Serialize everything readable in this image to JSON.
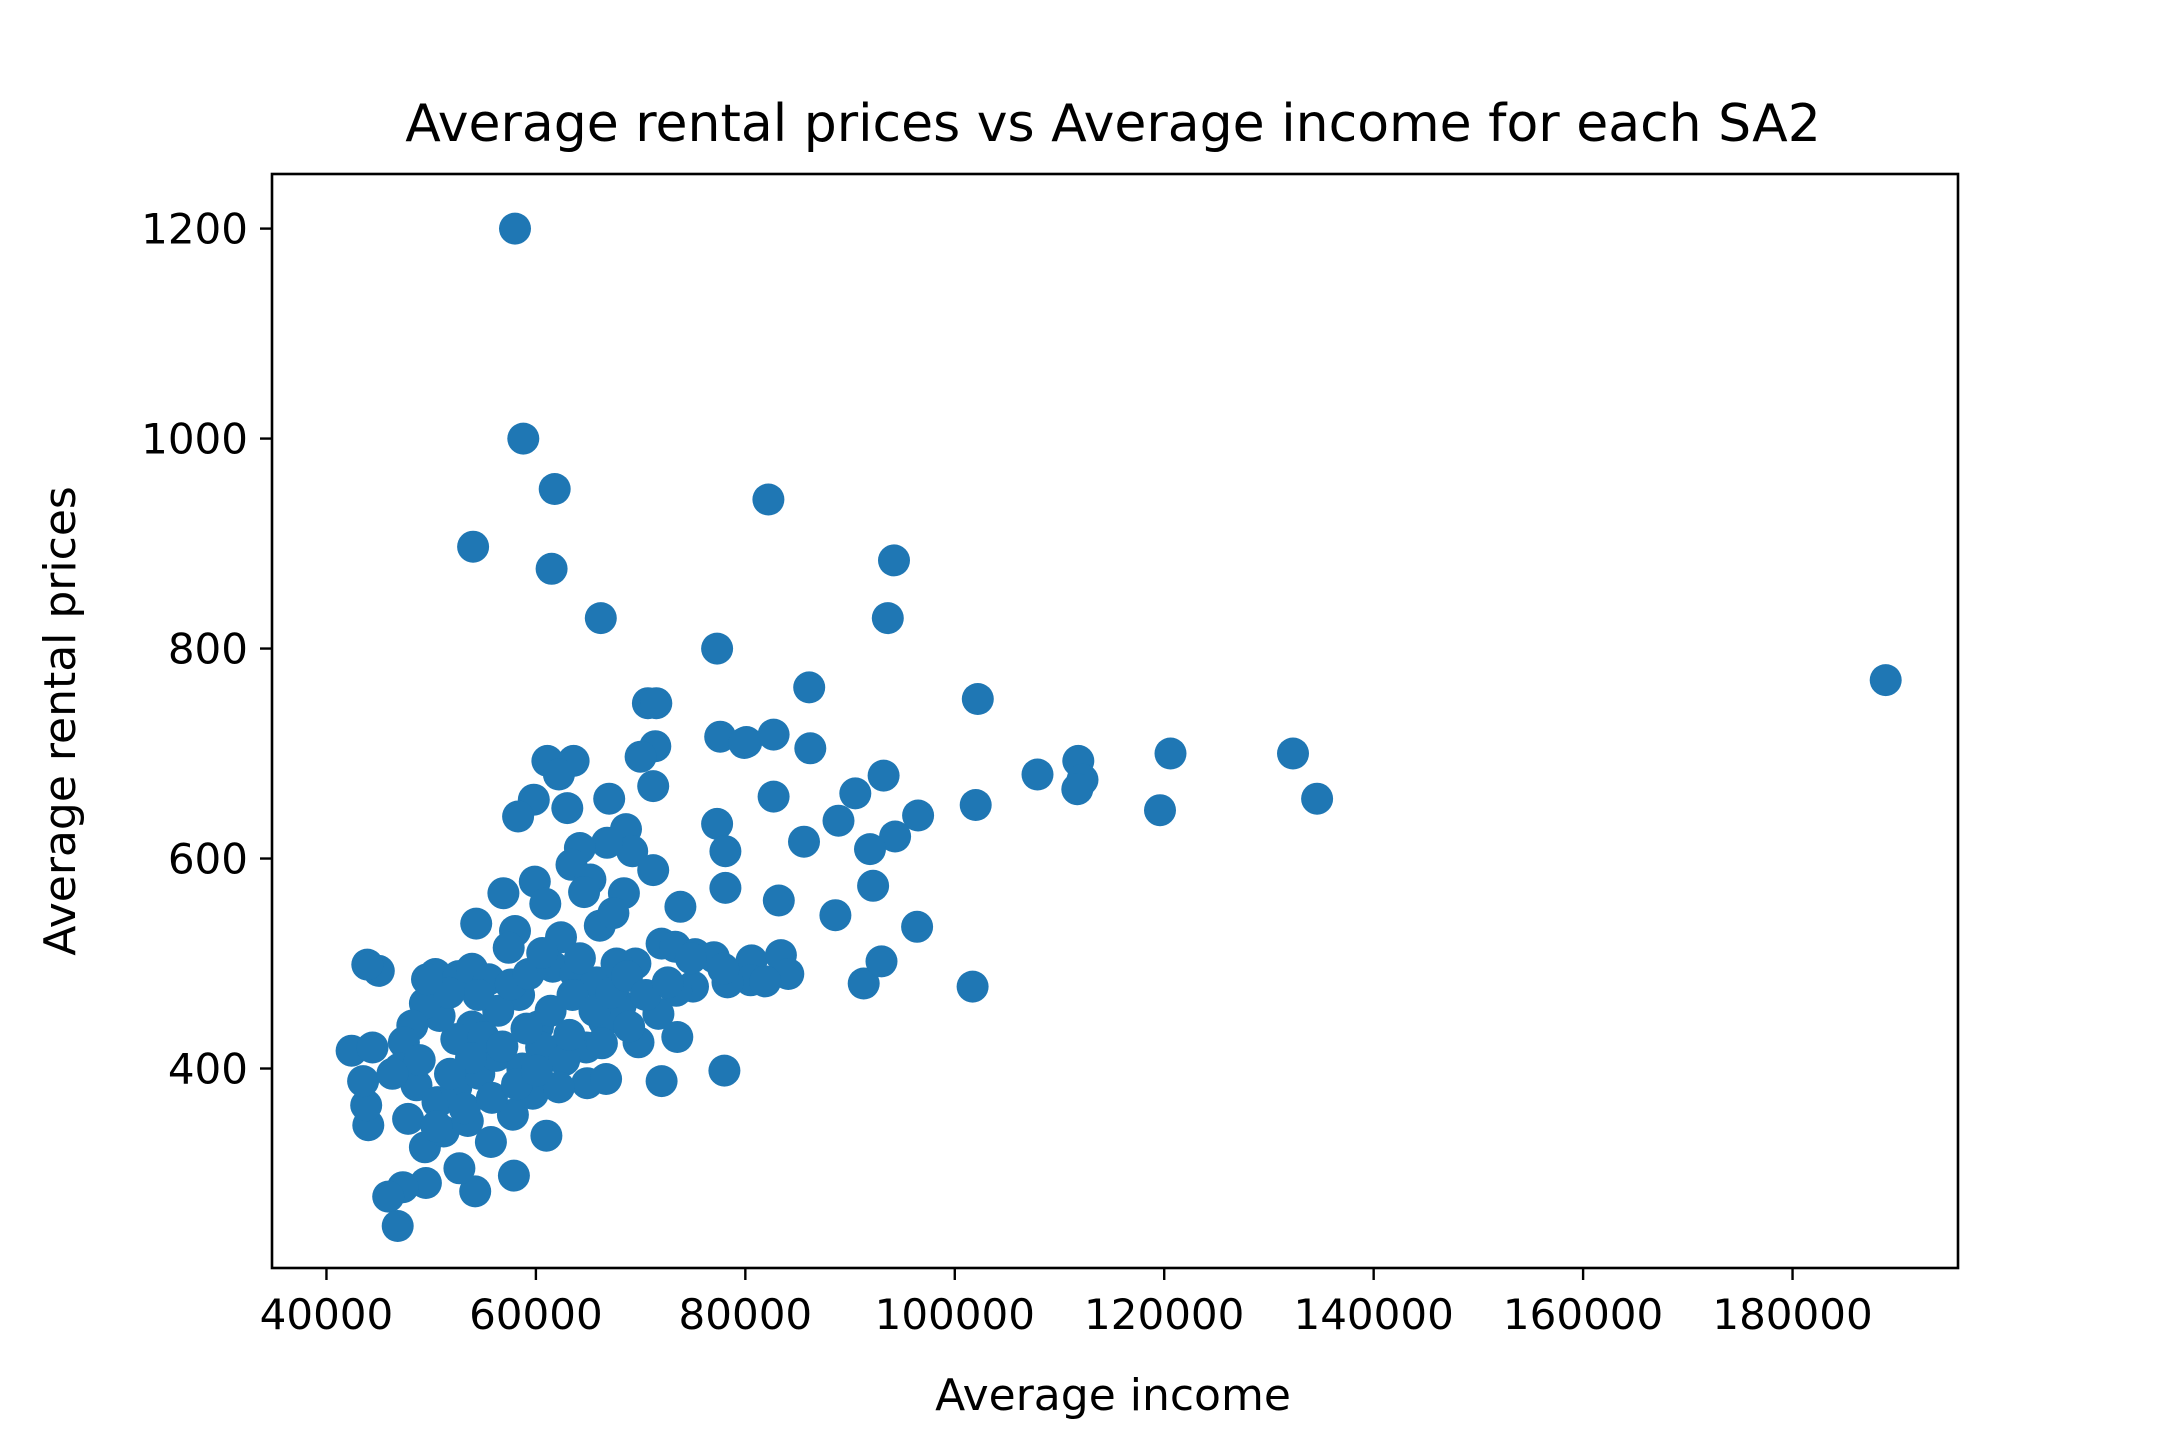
{
  "chart_data": {
    "type": "scatter",
    "title": "Average rental prices vs Average income for each SA2",
    "xlabel": "Average income",
    "ylabel": "Average rental prices",
    "xlim": [
      34800,
      195800
    ],
    "ylim": [
      210,
      1252
    ],
    "xticks": [
      40000,
      60000,
      80000,
      100000,
      120000,
      140000,
      160000,
      180000
    ],
    "xtick_labels": [
      "40000",
      "60000",
      "80000",
      "100000",
      "120000",
      "140000",
      "160000",
      "180000"
    ],
    "yticks": [
      400,
      600,
      800,
      1000,
      1200
    ],
    "ytick_labels": [
      "400",
      "600",
      "800",
      "1000",
      "1200"
    ],
    "grid": false,
    "legend": "none",
    "marker_color": "#1f77b4",
    "series": [
      {
        "points": [
          [
            58000,
            1200
          ],
          [
            58800,
            1000
          ],
          [
            61800,
            952
          ],
          [
            54000,
            897
          ],
          [
            61500,
            876
          ],
          [
            66200,
            829
          ],
          [
            82200,
            942
          ],
          [
            94200,
            884
          ],
          [
            93600,
            829
          ],
          [
            77300,
            800
          ],
          [
            188900,
            770
          ],
          [
            86100,
            763
          ],
          [
            102200,
            752
          ],
          [
            70700,
            748
          ],
          [
            71500,
            748
          ],
          [
            71400,
            707
          ],
          [
            77600,
            716
          ],
          [
            80100,
            711
          ],
          [
            82700,
            718
          ],
          [
            86200,
            705
          ],
          [
            61100,
            693
          ],
          [
            63600,
            693
          ],
          [
            70000,
            697
          ],
          [
            71200,
            669
          ],
          [
            62200,
            680
          ],
          [
            63000,
            648
          ],
          [
            107900,
            680
          ],
          [
            111800,
            693
          ],
          [
            112200,
            675
          ],
          [
            111700,
            666
          ],
          [
            120600,
            700
          ],
          [
            132300,
            700
          ],
          [
            134600,
            657
          ],
          [
            119600,
            646
          ],
          [
            102000,
            651
          ],
          [
            96500,
            641
          ],
          [
            93200,
            679
          ],
          [
            90500,
            662
          ],
          [
            94300,
            621
          ],
          [
            91900,
            609
          ],
          [
            88900,
            636
          ],
          [
            85600,
            616
          ],
          [
            82700,
            659
          ],
          [
            77300,
            633
          ],
          [
            78100,
            607
          ],
          [
            59800,
            656
          ],
          [
            58300,
            640
          ],
          [
            67000,
            657
          ],
          [
            68600,
            628
          ],
          [
            69200,
            607
          ],
          [
            71200,
            589
          ],
          [
            66800,
            615
          ],
          [
            64200,
            610
          ],
          [
            63400,
            594
          ],
          [
            65200,
            580
          ],
          [
            64600,
            568
          ],
          [
            68400,
            567
          ],
          [
            73800,
            554
          ],
          [
            78100,
            572
          ],
          [
            83200,
            560
          ],
          [
            92200,
            574
          ],
          [
            96400,
            535
          ],
          [
            88600,
            546
          ],
          [
            56900,
            567
          ],
          [
            59900,
            578
          ],
          [
            60900,
            557
          ],
          [
            54300,
            538
          ],
          [
            58000,
            531
          ],
          [
            62400,
            525
          ],
          [
            66100,
            536
          ],
          [
            67400,
            548
          ],
          [
            72000,
            519
          ],
          [
            73300,
            516
          ],
          [
            75200,
            509
          ],
          [
            77000,
            506
          ],
          [
            80600,
            503
          ],
          [
            83400,
            508
          ],
          [
            84100,
            490
          ],
          [
            80500,
            484
          ],
          [
            78300,
            482
          ],
          [
            75000,
            478
          ],
          [
            73400,
            474
          ],
          [
            71700,
            452
          ],
          [
            73500,
            430
          ],
          [
            69800,
            425
          ],
          [
            68100,
            460
          ],
          [
            69500,
            500
          ],
          [
            66500,
            445
          ],
          [
            64800,
            420
          ],
          [
            62300,
            418
          ],
          [
            60200,
            440
          ],
          [
            58400,
            470
          ],
          [
            56400,
            455
          ],
          [
            53900,
            440
          ],
          [
            52400,
            428
          ],
          [
            50800,
            450
          ],
          [
            49400,
            462
          ],
          [
            48200,
            441
          ],
          [
            47400,
            425
          ],
          [
            47000,
            400
          ],
          [
            48600,
            384
          ],
          [
            50600,
            368
          ],
          [
            52400,
            382
          ],
          [
            54600,
            395
          ],
          [
            56200,
            412
          ],
          [
            58700,
            400
          ],
          [
            60500,
            420
          ],
          [
            62700,
            408
          ],
          [
            64900,
            386
          ],
          [
            66700,
            390
          ],
          [
            72000,
            388
          ],
          [
            78000,
            398
          ],
          [
            61000,
            336
          ],
          [
            57900,
            298
          ],
          [
            54200,
            283
          ],
          [
            52700,
            305
          ],
          [
            49500,
            291
          ],
          [
            47300,
            287
          ],
          [
            45900,
            278
          ],
          [
            46800,
            250
          ],
          [
            49400,
            325
          ],
          [
            51200,
            340
          ],
          [
            53500,
            350
          ],
          [
            55700,
            330
          ],
          [
            57800,
            356
          ],
          [
            59700,
            376
          ],
          [
            62200,
            382
          ],
          [
            44000,
            346
          ],
          [
            43800,
            365
          ],
          [
            43500,
            388
          ],
          [
            42400,
            417
          ],
          [
            44400,
            420
          ],
          [
            45000,
            493
          ],
          [
            43900,
            499
          ],
          [
            50400,
            490
          ],
          [
            52600,
            488
          ],
          [
            53900,
            495
          ],
          [
            55500,
            485
          ],
          [
            57600,
            480
          ],
          [
            59300,
            490
          ],
          [
            61600,
            497
          ],
          [
            63800,
            490
          ],
          [
            65800,
            482
          ],
          [
            67700,
            500
          ],
          [
            54500,
            470
          ],
          [
            51700,
            472
          ],
          [
            49600,
            485
          ],
          [
            55000,
            430
          ],
          [
            56800,
            421
          ],
          [
            59100,
            438
          ],
          [
            61400,
            455
          ],
          [
            63500,
            470
          ],
          [
            65600,
            455
          ],
          [
            67200,
            472
          ],
          [
            68700,
            488
          ],
          [
            64200,
            505
          ],
          [
            60600,
            510
          ],
          [
            57400,
            515
          ],
          [
            53800,
            410
          ],
          [
            51800,
            395
          ],
          [
            48900,
            408
          ],
          [
            46300,
            395
          ],
          [
            47800,
            352
          ],
          [
            50500,
            345
          ],
          [
            53200,
            362
          ],
          [
            55800,
            372
          ],
          [
            58200,
            385
          ],
          [
            60100,
            398
          ],
          [
            63200,
            432
          ],
          [
            66300,
            424
          ],
          [
            68900,
            440
          ],
          [
            70500,
            470
          ],
          [
            72600,
            482
          ],
          [
            74800,
            505
          ],
          [
            77900,
            495
          ],
          [
            101700,
            478
          ],
          [
            91300,
            481
          ],
          [
            93000,
            502
          ],
          [
            79900,
            710
          ],
          [
            81900,
            483
          ]
        ]
      }
    ]
  }
}
